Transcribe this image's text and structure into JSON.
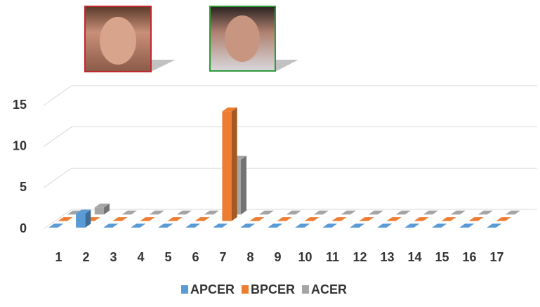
{
  "chart_data": {
    "type": "bar3d",
    "categories": [
      "1",
      "2",
      "3",
      "4",
      "5",
      "6",
      "7",
      "8",
      "9",
      "10",
      "11",
      "12",
      "13",
      "14",
      "15",
      "16",
      "17"
    ],
    "series": [
      {
        "name": "APCER",
        "color": "#5b9bd5",
        "values": [
          0,
          1.7,
          0,
          0,
          0,
          0,
          0,
          0,
          0,
          0,
          0,
          0,
          0,
          0,
          0,
          0,
          0
        ]
      },
      {
        "name": "BPCER",
        "color": "#ed7d31",
        "values": [
          0,
          0,
          0,
          0,
          0,
          0,
          13.3,
          0,
          0,
          0,
          0,
          0,
          0,
          0,
          0,
          0,
          0
        ]
      },
      {
        "name": "ACER",
        "color": "#a5a5a5",
        "values": [
          0,
          0.85,
          0,
          0,
          0,
          0,
          6.65,
          0,
          0,
          0,
          0,
          0,
          0,
          0,
          0,
          0,
          0
        ]
      }
    ],
    "ylim": [
      0,
      15
    ],
    "yticks": [
      0,
      5,
      10,
      15
    ],
    "grid": true
  }
}
